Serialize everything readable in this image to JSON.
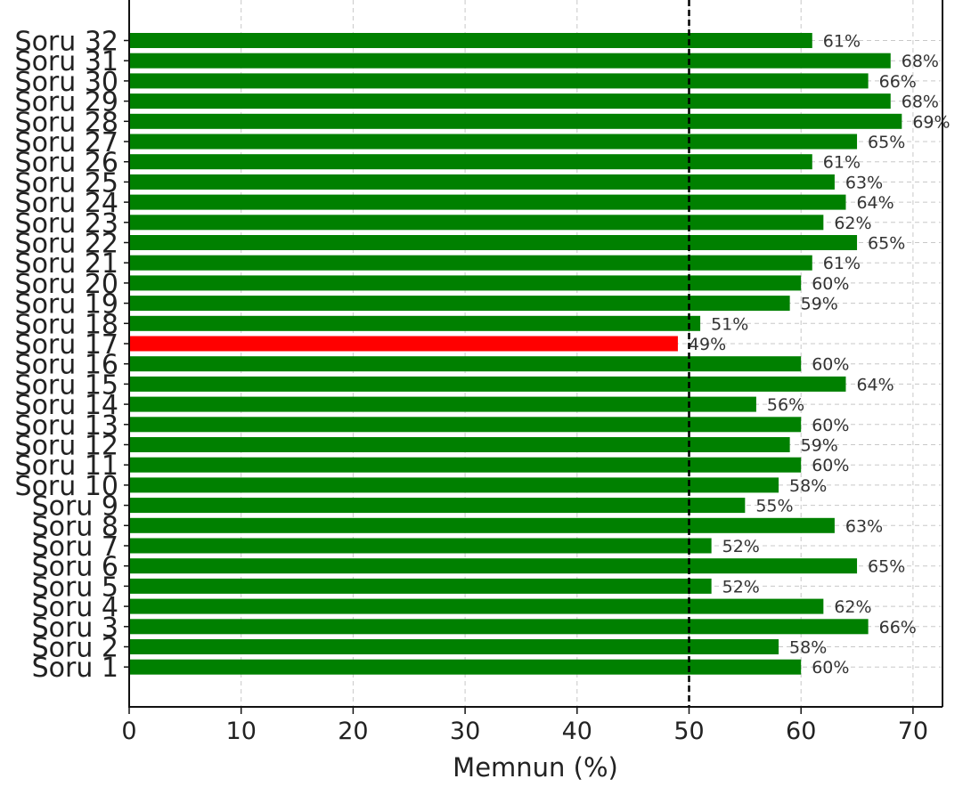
{
  "chart_data": {
    "type": "bar",
    "orientation": "horizontal",
    "categories": [
      "Soru 1",
      "Soru 2",
      "Soru 3",
      "Soru 4",
      "Soru 5",
      "Soru 6",
      "Soru 7",
      "Soru 8",
      "Soru 9",
      "Soru 10",
      "Soru 11",
      "Soru 12",
      "Soru 13",
      "Soru 14",
      "Soru 15",
      "Soru 16",
      "Soru 17",
      "Soru 18",
      "Soru 19",
      "Soru 20",
      "Soru 21",
      "Soru 22",
      "Soru 23",
      "Soru 24",
      "Soru 25",
      "Soru 26",
      "Soru 27",
      "Soru 28",
      "Soru 29",
      "Soru 30",
      "Soru 31",
      "Soru 32"
    ],
    "values": [
      60,
      58,
      66,
      62,
      52,
      65,
      52,
      63,
      55,
      58,
      60,
      59,
      60,
      56,
      64,
      60,
      49,
      51,
      59,
      60,
      61,
      65,
      62,
      64,
      63,
      61,
      65,
      69,
      68,
      66,
      68,
      61
    ],
    "value_labels": [
      "60%",
      "58%",
      "66%",
      "62%",
      "52%",
      "65%",
      "52%",
      "63%",
      "55%",
      "58%",
      "60%",
      "59%",
      "60%",
      "56%",
      "64%",
      "60%",
      "49%",
      "51%",
      "59%",
      "60%",
      "61%",
      "65%",
      "62%",
      "64%",
      "63%",
      "61%",
      "65%",
      "69%",
      "68%",
      "66%",
      "68%",
      "61%"
    ],
    "xlabel": "Memnun (%)",
    "ylabel": "",
    "title": "",
    "xlim": [
      0,
      72.5
    ],
    "xticks": [
      0,
      10,
      20,
      30,
      40,
      50,
      60,
      70
    ],
    "threshold": 50,
    "colors": {
      "above": "#008000",
      "below": "#ff0000",
      "threshold_line": "#000000",
      "grid": "#c8c8c8"
    },
    "grid": true,
    "legend": "none"
  }
}
